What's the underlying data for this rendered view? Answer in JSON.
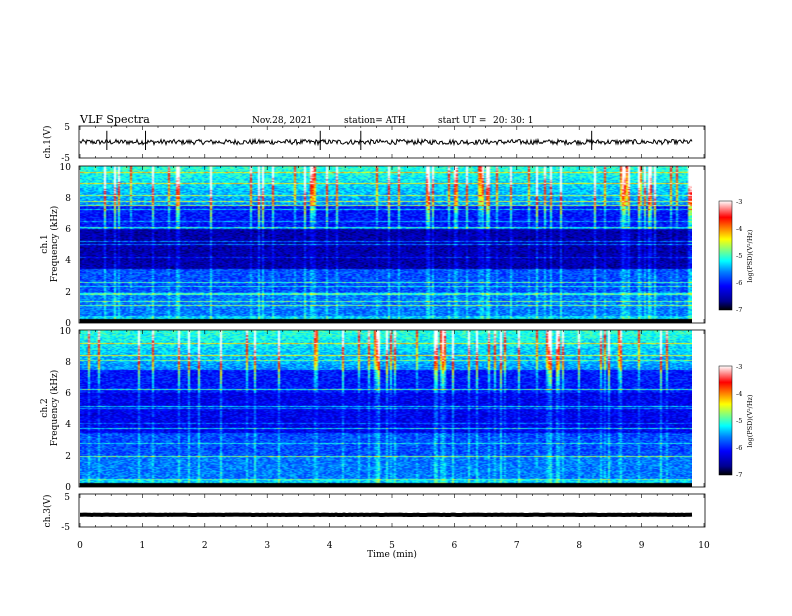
{
  "header": {
    "title": "VLF  Spectra",
    "date": "Nov.28, 2021",
    "station": "station= ATH",
    "start_ut_label": "start  UT  =",
    "start_ut_value": "20: 30: 1"
  },
  "colors": {
    "trace": "#000000",
    "axes": "#000000",
    "colormap": [
      "#000000",
      "#00008f",
      "#0000ff",
      "#0080ff",
      "#00ffff",
      "#80ff80",
      "#ffff00",
      "#ff8000",
      "#ff0000",
      "#ffffff"
    ]
  },
  "chart_data": [
    {
      "type": "line",
      "panel": "ch1-timeseries",
      "ylabel": "ch.1(V)",
      "ylim": [
        -5,
        5
      ],
      "yticks": [
        "5",
        "-5"
      ],
      "xlim": [
        0,
        10
      ],
      "xticks": [
        "0",
        "1",
        "2",
        "3",
        "4",
        "5",
        "6",
        "7",
        "8",
        "9",
        "10"
      ],
      "mean_level": 0.0,
      "noise_amplitude": 0.8,
      "spikes_x": [
        0.43,
        1.05,
        3.85,
        4.5,
        8.2
      ]
    },
    {
      "type": "heatmap",
      "panel": "ch1-spectrogram",
      "ylabel_line1": "ch.1",
      "ylabel_line2": "Frequency  (kHz)",
      "ylim": [
        0,
        10
      ],
      "yticks": [
        "0",
        "2",
        "4",
        "6",
        "8",
        "10"
      ],
      "xlim": [
        0,
        10
      ],
      "colorbar": {
        "label": "log(PSD)(V²/Hz)",
        "range": [
          -7,
          -3
        ],
        "ticks": [
          "-3",
          "-4",
          "-5",
          "-6",
          "-7"
        ]
      }
    },
    {
      "type": "heatmap",
      "panel": "ch2-spectrogram",
      "ylabel_line1": "ch.2",
      "ylabel_line2": "Frequency  (kHz)",
      "ylim": [
        0,
        10
      ],
      "yticks": [
        "0",
        "2",
        "4",
        "6",
        "8",
        "10"
      ],
      "xlim": [
        0,
        10
      ],
      "colorbar": {
        "label": "log(PSD)(V²/Hz)",
        "range": [
          -7,
          -3
        ],
        "ticks": [
          "-3",
          "-4",
          "-5",
          "-6",
          "-7"
        ]
      }
    },
    {
      "type": "line",
      "panel": "ch3-timeseries",
      "ylabel": "ch.3(V)",
      "ylim": [
        -5,
        5
      ],
      "yticks": [
        "5",
        "-5"
      ],
      "xlim": [
        0,
        10
      ],
      "xticks": [
        "0",
        "1",
        "2",
        "3",
        "4",
        "5",
        "6",
        "7",
        "8",
        "9",
        "10"
      ],
      "xlabel": "Time  (min)",
      "mean_level": -1.3,
      "noise_amplitude": 0.15
    }
  ]
}
